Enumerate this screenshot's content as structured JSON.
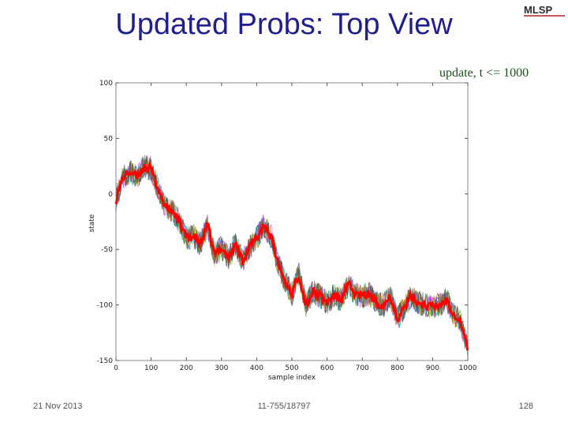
{
  "slide": {
    "title": "Updated Probs: Top View",
    "logo_text": "MLSP",
    "footer_date": "21 Nov 2013",
    "footer_course": "11-755/18797",
    "page_number": "128"
  },
  "colors": {
    "title": "#1f1f8f",
    "mean_line": "#ff0000"
  },
  "chart_data": {
    "type": "line",
    "title": "update, t <= 1000",
    "xlabel": "sample index",
    "ylabel": "state",
    "xlim": [
      0,
      1000
    ],
    "ylim": [
      -150,
      100
    ],
    "xticks": [
      0,
      100,
      200,
      300,
      400,
      500,
      600,
      700,
      800,
      900,
      1000
    ],
    "yticks": [
      100,
      50,
      0,
      -50,
      -100,
      -150
    ],
    "grid": false,
    "legend": "none",
    "series": [
      {
        "color": "#ff0000",
        "x": [
          0,
          20,
          40,
          60,
          80,
          100,
          120,
          140,
          160,
          180,
          200,
          220,
          240,
          260,
          280,
          300,
          320,
          340,
          360,
          380,
          400,
          420,
          440,
          460,
          480,
          500,
          520,
          540,
          560,
          580,
          600,
          620,
          640,
          660,
          680,
          700,
          720,
          740,
          760,
          780,
          800,
          820,
          840,
          860,
          880,
          900,
          920,
          940,
          960,
          980,
          1000
        ],
        "y": [
          -5,
          15,
          20,
          15,
          25,
          22,
          5,
          -12,
          -15,
          -25,
          -40,
          -38,
          -45,
          -28,
          -55,
          -48,
          -58,
          -45,
          -60,
          -48,
          -40,
          -28,
          -38,
          -62,
          -78,
          -90,
          -72,
          -100,
          -88,
          -92,
          -98,
          -92,
          -95,
          -82,
          -90,
          -92,
          -90,
          -98,
          -100,
          -92,
          -112,
          -102,
          -92,
          -98,
          -100,
          -102,
          -100,
          -95,
          -108,
          -115,
          -140
        ]
      }
    ],
    "noise_series_colors": [
      "#1f3fb5",
      "#2a9d3a",
      "#26b5c5",
      "#c54ad8",
      "#c9b22c",
      "#444444",
      "#8a5a2b"
    ]
  }
}
